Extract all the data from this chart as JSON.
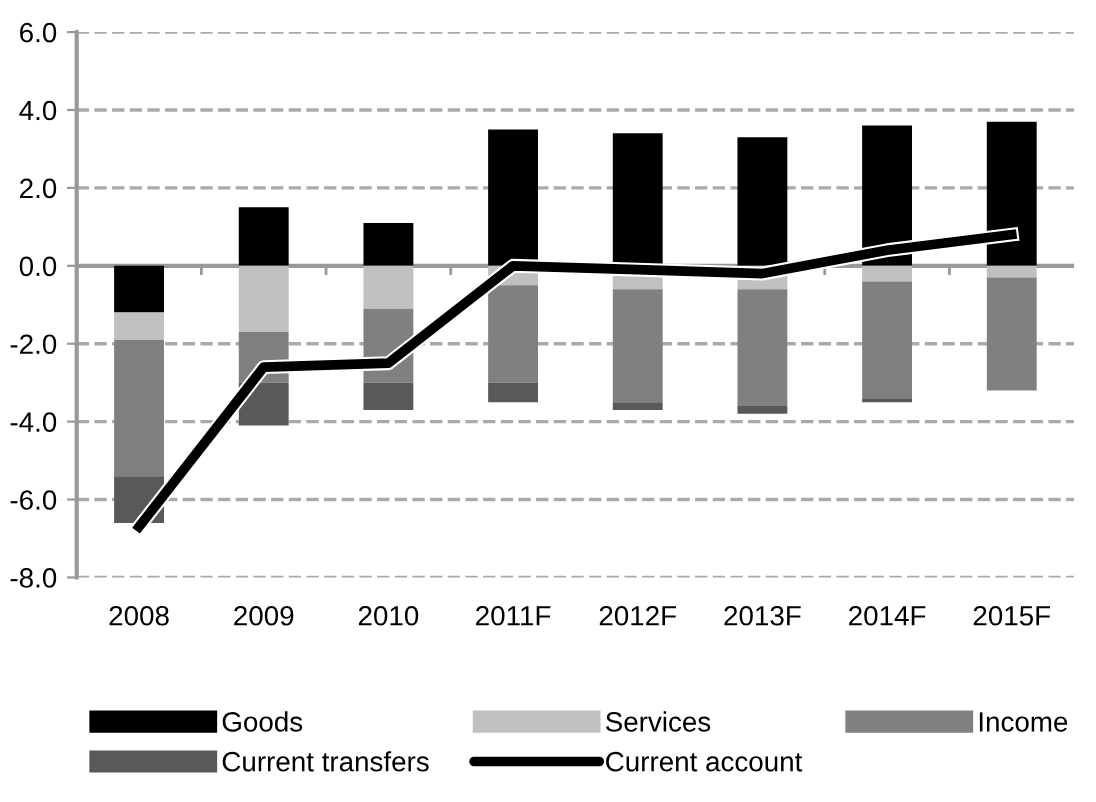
{
  "chart_data": {
    "type": "bar",
    "stacked": true,
    "categories": [
      "2008",
      "2009",
      "2010",
      "2011F",
      "2012F",
      "2013F",
      "2014F",
      "2015F"
    ],
    "series": [
      {
        "name": "Goods",
        "color": "#000000",
        "values": [
          -1.2,
          1.5,
          1.1,
          3.5,
          3.4,
          3.3,
          3.6,
          3.7
        ]
      },
      {
        "name": "Services",
        "color": "#c0c0c0",
        "values": [
          -0.7,
          -1.7,
          -1.1,
          -0.5,
          -0.6,
          -0.6,
          -0.4,
          -0.3
        ]
      },
      {
        "name": "Income",
        "color": "#808080",
        "values": [
          -3.5,
          -1.3,
          -1.9,
          -2.5,
          -2.9,
          -3.0,
          -3.0,
          -2.9
        ]
      },
      {
        "name": "Current transfers",
        "color": "#595959",
        "values": [
          -1.2,
          -1.1,
          -0.7,
          -0.5,
          -0.2,
          -0.2,
          -0.1,
          0
        ]
      },
      {
        "name": "Current account",
        "type": "line",
        "color": "#000000",
        "values": [
          -6.7,
          -2.6,
          -2.5,
          0.0,
          -0.1,
          -0.2,
          0.4,
          0.8
        ]
      }
    ],
    "ylim": [
      -8,
      6
    ],
    "yticks": [
      {
        "value": -8,
        "label": "-8.0"
      },
      {
        "value": -6,
        "label": "-6.0"
      },
      {
        "value": -4,
        "label": "-4.0"
      },
      {
        "value": -2,
        "label": "-2.0"
      },
      {
        "value": 0,
        "label": "0.0"
      },
      {
        "value": 2,
        "label": "2.0"
      },
      {
        "value": 4,
        "label": "4.0"
      },
      {
        "value": 6,
        "label": "6.0"
      }
    ],
    "grid": "y",
    "legend": "bottom",
    "marker": "none",
    "line_style": "solid"
  }
}
